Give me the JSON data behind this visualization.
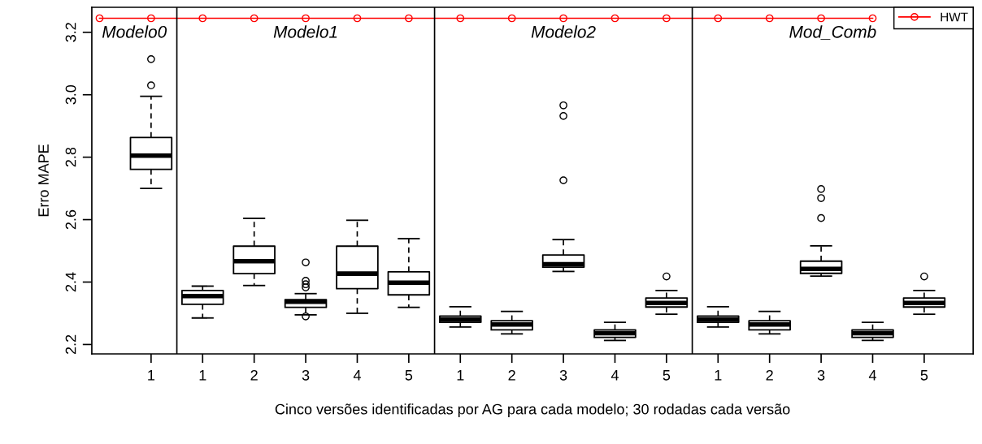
{
  "chart_data": {
    "type": "box",
    "xlabel": "Cinco versões identificadas por AG para cada modelo; 30 rodadas cada versão",
    "ylabel": "Erro MAPE",
    "categories": [
      null,
      "1",
      "1",
      "2",
      "3",
      "4",
      "5",
      "1",
      "2",
      "3",
      "4",
      "5",
      "1",
      "2",
      "3",
      "4",
      "5"
    ],
    "ylim": [
      2.17,
      3.28
    ],
    "yticks": [
      2.2,
      2.4,
      2.6,
      2.8,
      {
        "value": 3.0,
        "label": "3.0"
      },
      3.2
    ],
    "legend": "top right",
    "series": [
      {
        "color": "#000000",
        "boxes": [
          null,
          {
            "low": 2.7,
            "q1": 2.761,
            "median": 2.805,
            "q3": 2.863,
            "high": 2.995,
            "outliers": [
              3.03,
              3.114
            ]
          },
          {
            "low": 2.285,
            "q1": 2.329,
            "median": 2.355,
            "q3": 2.373,
            "high": 2.387
          },
          {
            "low": 2.389,
            "q1": 2.427,
            "median": 2.467,
            "q3": 2.515,
            "high": 2.604
          },
          {
            "low": 2.295,
            "q1": 2.319,
            "median": 2.337,
            "q3": 2.344,
            "high": 2.363,
            "outliers": [
              2.463,
              2.404,
              2.393,
              2.383,
              2.29
            ]
          },
          {
            "low": 2.3,
            "q1": 2.379,
            "median": 2.427,
            "q3": 2.515,
            "high": 2.598
          },
          {
            "low": 2.319,
            "q1": 2.359,
            "median": 2.398,
            "q3": 2.433,
            "high": 2.539
          },
          {
            "low": 2.256,
            "q1": 2.271,
            "median": 2.28,
            "q3": 2.291,
            "high": 2.321
          },
          {
            "low": 2.234,
            "q1": 2.247,
            "median": 2.264,
            "q3": 2.276,
            "high": 2.306
          },
          {
            "low": 2.434,
            "q1": 2.448,
            "median": 2.457,
            "q3": 2.487,
            "high": 2.536,
            "outliers": [
              2.966,
              2.932,
              2.726
            ]
          },
          {
            "low": 2.213,
            "q1": 2.223,
            "median": 2.236,
            "q3": 2.247,
            "high": 2.271
          },
          {
            "low": 2.297,
            "q1": 2.32,
            "median": 2.333,
            "q3": 2.349,
            "high": 2.373,
            "outliers": [
              2.418
            ]
          },
          {
            "low": 2.256,
            "q1": 2.271,
            "median": 2.28,
            "q3": 2.291,
            "high": 2.321
          },
          {
            "low": 2.234,
            "q1": 2.247,
            "median": 2.264,
            "q3": 2.276,
            "high": 2.306
          },
          {
            "low": 2.419,
            "q1": 2.428,
            "median": 2.442,
            "q3": 2.467,
            "high": 2.516,
            "outliers": [
              2.698,
              2.669,
              2.605
            ]
          },
          {
            "low": 2.213,
            "q1": 2.223,
            "median": 2.236,
            "q3": 2.247,
            "high": 2.271
          },
          {
            "low": 2.297,
            "q1": 2.32,
            "median": 2.333,
            "q3": 2.349,
            "high": 2.373,
            "outliers": [
              2.418
            ]
          }
        ]
      },
      {
        "type": "line",
        "name": "HWT",
        "color": "#ff0000",
        "marker": "circle",
        "line_style": "solid",
        "values": [
          3.245,
          3.245,
          3.245,
          3.245,
          3.245,
          3.245,
          3.245,
          3.245,
          3.245,
          3.245,
          3.245,
          3.245,
          3.245,
          3.245,
          3.245,
          3.245,
          null
        ]
      }
    ],
    "annotations": [
      "Modelo0",
      "Modelo1",
      "Modelo2",
      "Mod_Comb"
    ]
  }
}
